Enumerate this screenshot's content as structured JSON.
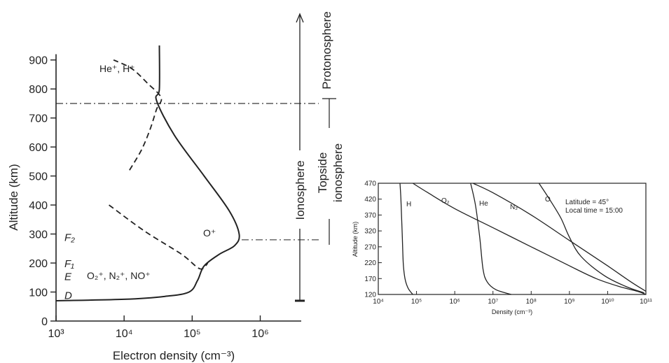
{
  "chart_data": [
    {
      "type": "line",
      "xlabel": "Electron density (cm⁻³)",
      "ylabel": "Altitude (km)",
      "x_scale": "log",
      "xlim": [
        1000,
        4000000
      ],
      "ylim": [
        0,
        950
      ],
      "x_ticks": [
        {
          "value": 1000,
          "label": "10³"
        },
        {
          "value": 10000,
          "label": "10⁴"
        },
        {
          "value": 100000,
          "label": "10⁵"
        },
        {
          "value": 1000000,
          "label": "10⁶"
        }
      ],
      "y_ticks": [
        0,
        100,
        200,
        300,
        400,
        500,
        600,
        700,
        800,
        900
      ],
      "layer_labels": [
        {
          "label": "F₂",
          "y": 290
        },
        {
          "label": "F₁",
          "y": 200
        },
        {
          "label": "E",
          "y": 155
        },
        {
          "label": "D",
          "y": 90
        }
      ],
      "series": [
        {
          "name": "O⁺",
          "style": "solid",
          "points": [
            [
              1000,
              70
            ],
            [
              10000,
              75
            ],
            [
              40000,
              85
            ],
            [
              90000,
              100
            ],
            [
              120000,
              140
            ],
            [
              150000,
              190
            ],
            [
              250000,
              230
            ],
            [
              420000,
              260
            ],
            [
              490000,
              300
            ],
            [
              350000,
              380
            ],
            [
              150000,
              500
            ],
            [
              55000,
              640
            ],
            [
              30000,
              760
            ],
            [
              33000,
              800
            ],
            [
              33000,
              950
            ]
          ]
        },
        {
          "name": "He⁺, H⁺",
          "style": "dashed",
          "points": [
            [
              12000,
              520
            ],
            [
              18000,
              590
            ],
            [
              24000,
              660
            ],
            [
              30000,
              730
            ],
            [
              35000,
              770
            ],
            [
              22000,
              820
            ],
            [
              13000,
              870
            ],
            [
              7000,
              900
            ]
          ]
        },
        {
          "name": "O₂⁺, N₂⁺, NO⁺",
          "style": "dashed",
          "points": [
            [
              6000,
              400
            ],
            [
              20000,
              310
            ],
            [
              70000,
              230
            ],
            [
              130000,
              180
            ],
            [
              170000,
              200
            ]
          ]
        }
      ],
      "reference_lines": [
        {
          "y": 750,
          "style": "dashdot"
        },
        {
          "y": 280,
          "style": "dashdot"
        }
      ],
      "region_labels": {
        "ionosphere": "Ionosphere",
        "protonosphere": "Protonosphere",
        "topside_line1": "Topside",
        "topside_line2": "ionosphere"
      }
    },
    {
      "type": "line",
      "xlabel": "Density (cm⁻³)",
      "ylabel": "Altitude (km)",
      "x_scale": "log",
      "xlim": [
        10000,
        100000000000
      ],
      "ylim": [
        120,
        470
      ],
      "x_ticks": [
        {
          "value": 10000,
          "label": "10⁴"
        },
        {
          "value": 100000,
          "label": "10⁵"
        },
        {
          "value": 1000000,
          "label": "10⁶"
        },
        {
          "value": 10000000,
          "label": "10⁷"
        },
        {
          "value": 100000000,
          "label": "10⁸"
        },
        {
          "value": 1000000000,
          "label": "10⁹"
        },
        {
          "value": 10000000000,
          "label": "10¹⁰"
        },
        {
          "value": 100000000000,
          "label": "10¹¹"
        }
      ],
      "y_ticks": [
        120,
        170,
        220,
        270,
        320,
        370,
        420,
        470
      ],
      "annotation_line1": "Latitude = 45°",
      "annotation_line2": "Local time = 15:00",
      "series": [
        {
          "name": "H",
          "points": [
            [
              80000,
              120
            ],
            [
              60000,
              140
            ],
            [
              50000,
              170
            ],
            [
              45000,
              220
            ],
            [
              42000,
              320
            ],
            [
              39000,
              420
            ],
            [
              37000,
              470
            ]
          ]
        },
        {
          "name": "O₂",
          "points": [
            [
              100000000000,
              120
            ],
            [
              60000000000,
              130
            ],
            [
              20000000000,
              145
            ],
            [
              5000000000,
              170
            ],
            [
              1000000000,
              210
            ],
            [
              100000000,
              270
            ],
            [
              10000000,
              330
            ],
            [
              1000000,
              390
            ],
            [
              200000,
              440
            ],
            [
              80000,
              470
            ]
          ]
        },
        {
          "name": "He",
          "points": [
            [
              30000000,
              120
            ],
            [
              12000000,
              135
            ],
            [
              7000000,
              160
            ],
            [
              5500000,
              200
            ],
            [
              4500000,
              300
            ],
            [
              3500000,
              400
            ],
            [
              2600000,
              470
            ]
          ]
        },
        {
          "name": "N₂",
          "points": [
            [
              100000000000,
              130
            ],
            [
              40000000000,
              160
            ],
            [
              10000000000,
              210
            ],
            [
              1000000000,
              290
            ],
            [
              100000000,
              370
            ],
            [
              10000000,
              440
            ],
            [
              3000000,
              470
            ]
          ]
        },
        {
          "name": "O",
          "points": [
            [
              90000000000,
              125
            ],
            [
              30000000000,
              145
            ],
            [
              8000000000,
              180
            ],
            [
              2000000000,
              240
            ],
            [
              1000000000,
              300
            ],
            [
              600000000,
              360
            ],
            [
              300000000,
              420
            ],
            [
              160000000,
              470
            ]
          ]
        }
      ]
    }
  ]
}
